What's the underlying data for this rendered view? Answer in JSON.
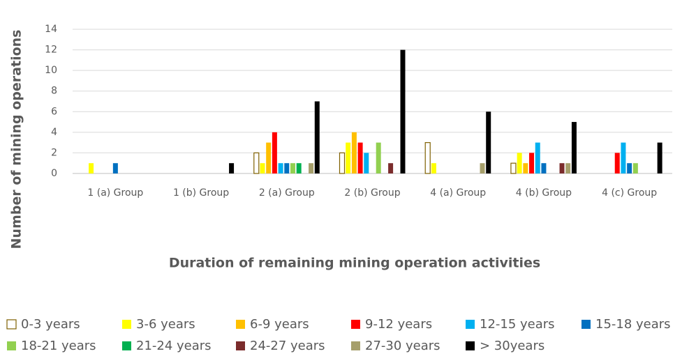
{
  "chart_data": {
    "type": "bar",
    "y_label": "Number  of mining operations",
    "x_label": "Duration of remaining mining operation activities",
    "categories": [
      "1 (a) Group",
      "1 (b) Group",
      "2 (a) Group",
      "2 (b) Group",
      "4 (a) Group",
      "4 (b) Group",
      "4 (c) Group"
    ],
    "ylim": [
      0,
      14
    ],
    "yticks": [
      0,
      2,
      4,
      6,
      8,
      10,
      12,
      14
    ],
    "grid": true,
    "series": [
      {
        "name": "0-3 years",
        "color": "#ffffff",
        "values": [
          0,
          0,
          2,
          2,
          3,
          1,
          0
        ]
      },
      {
        "name": "3-6 years",
        "color": "#ffff00",
        "values": [
          1,
          0,
          1,
          3,
          1,
          2,
          0
        ]
      },
      {
        "name": "6-9 years",
        "color": "#ffc000",
        "values": [
          0,
          0,
          3,
          4,
          0,
          1,
          0
        ]
      },
      {
        "name": "9-12 years",
        "color": "#ff0000",
        "values": [
          0,
          0,
          4,
          3,
          0,
          2,
          2
        ]
      },
      {
        "name": "12-15 years",
        "color": "#00b0f0",
        "values": [
          0,
          0,
          1,
          2,
          0,
          3,
          3
        ]
      },
      {
        "name": "15-18 years",
        "color": "#0070c0",
        "values": [
          1,
          0,
          1,
          0,
          0,
          1,
          1
        ]
      },
      {
        "name": "18-21 years",
        "color": "#92d050",
        "values": [
          0,
          0,
          1,
          3,
          0,
          0,
          1
        ]
      },
      {
        "name": "21-24 years",
        "color": "#00b050",
        "values": [
          0,
          0,
          1,
          0,
          0,
          0,
          0
        ]
      },
      {
        "name": "24-27 years",
        "color": "#7b2c2c",
        "values": [
          0,
          0,
          0,
          1,
          0,
          1,
          0
        ]
      },
      {
        "name": "27-30 years",
        "color": "#a69f6b",
        "values": [
          0,
          0,
          1,
          0,
          1,
          1,
          0
        ]
      },
      {
        "name": "> 30years",
        "color": "#000000",
        "values": [
          0,
          1,
          7,
          12,
          6,
          5,
          3
        ]
      }
    ]
  }
}
